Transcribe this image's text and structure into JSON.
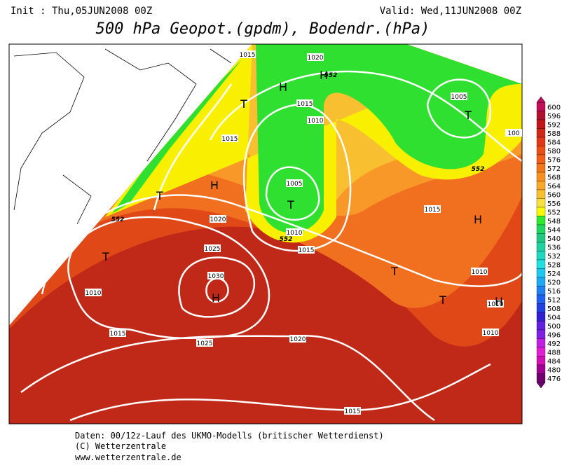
{
  "header": {
    "init": "Init : Thu,05JUN2008 00Z",
    "valid": "Valid: Wed,11JUN2008 00Z",
    "title": "500 hPa Geopot.(gpdm), Bodendr.(hPa)"
  },
  "colorbar": {
    "values": [
      600,
      596,
      592,
      588,
      584,
      580,
      576,
      572,
      568,
      564,
      560,
      556,
      552,
      548,
      544,
      540,
      536,
      532,
      528,
      524,
      520,
      516,
      512,
      508,
      504,
      500,
      496,
      492,
      488,
      484,
      480,
      476
    ],
    "colors": [
      "#c0105a",
      "#b01030",
      "#c01818",
      "#d02818",
      "#e03818",
      "#e85018",
      "#f06018",
      "#f07818",
      "#f89020",
      "#f8a828",
      "#f8c030",
      "#f8e040",
      "#f8f800",
      "#30e830",
      "#20d860",
      "#20c880",
      "#20d0a0",
      "#20d8c0",
      "#20e0e0",
      "#20c8f0",
      "#20a8f0",
      "#2080f0",
      "#2060f0",
      "#2040e0",
      "#3020d0",
      "#6020e0",
      "#8020e0",
      "#c020e0",
      "#e020d0",
      "#d010b0",
      "#a00090",
      "#700070"
    ]
  },
  "isobar_labels": [
    1015,
    1020,
    1015,
    1015,
    1010,
    1005,
    1010,
    1015,
    1020,
    1025,
    1030,
    1010,
    1015,
    1025,
    1020,
    1015,
    1015,
    1005,
    100,
    1010,
    1010,
    1010
  ],
  "height_labels": [
    552,
    552,
    552,
    552
  ],
  "centers": [
    "T",
    "H",
    "H",
    "T",
    "T",
    "H",
    "T",
    "T",
    "H",
    "H",
    "T",
    "T",
    "H"
  ],
  "footer": [
    "Daten: 00/12z-Lauf des UKMO-Modells (britischer Wetterdienst)",
    "(C) Wetterzentrale",
    "www.wetterzentrale.de"
  ]
}
